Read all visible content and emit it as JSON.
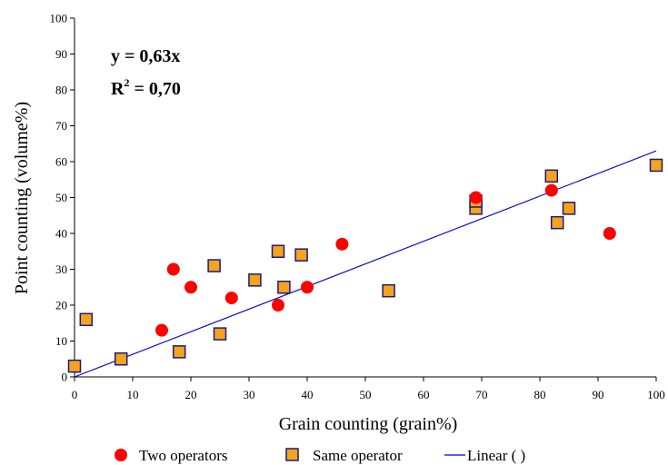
{
  "chart_data": {
    "type": "scatter",
    "xlabel": "Grain counting (grain%)",
    "ylabel": "Point counting (volume%)",
    "xlim": [
      0,
      100
    ],
    "ylim": [
      0,
      100
    ],
    "xticks": [
      "0",
      "10",
      "20",
      "30",
      "40",
      "50",
      "60",
      "70",
      "80",
      "90",
      "100"
    ],
    "yticks": [
      "0",
      "10",
      "20",
      "30",
      "40",
      "50",
      "60",
      "70",
      "80",
      "90",
      "100"
    ],
    "grid": false,
    "legend_position": "bottom",
    "annotations": {
      "equation": "y = 0,63x",
      "r2_prefix": "R",
      "r2_sup": "2",
      "r2_value": " = 0,70"
    },
    "series": [
      {
        "name": "Two operators",
        "marker": "circle",
        "color": "#ff0000",
        "points": [
          [
            15,
            13
          ],
          [
            17,
            30
          ],
          [
            20,
            25
          ],
          [
            27,
            22
          ],
          [
            35,
            20
          ],
          [
            40,
            25
          ],
          [
            46,
            37
          ],
          [
            69,
            50
          ],
          [
            82,
            52
          ],
          [
            92,
            40
          ]
        ]
      },
      {
        "name": "Same operator",
        "marker": "square",
        "color": "#f5a31a",
        "edge": "#1a1a80",
        "points": [
          [
            0,
            3
          ],
          [
            2,
            16
          ],
          [
            8,
            5
          ],
          [
            18,
            7
          ],
          [
            24,
            31
          ],
          [
            25,
            12
          ],
          [
            31,
            27
          ],
          [
            35,
            35
          ],
          [
            36,
            25
          ],
          [
            39,
            34
          ],
          [
            54,
            24
          ],
          [
            69,
            47
          ],
          [
            69,
            49
          ],
          [
            82,
            56
          ],
          [
            83,
            43
          ],
          [
            85,
            47
          ],
          [
            100,
            59
          ]
        ]
      },
      {
        "name": "Linear ( )",
        "type": "line",
        "color": "#0000cc",
        "slope": 0.63,
        "x": [
          0,
          100
        ],
        "y": [
          0,
          63
        ]
      }
    ]
  }
}
